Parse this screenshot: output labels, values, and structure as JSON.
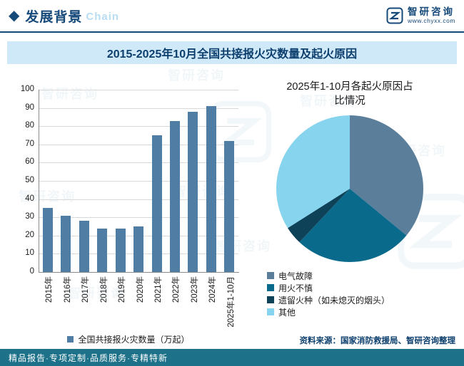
{
  "header": {
    "diamond": "◆",
    "title": "发展背景",
    "watermark_word": "Chain",
    "brand": "智研咨询",
    "website": "www.chyxx.com"
  },
  "main_title": "2015-2025年10月全国共接报火灾数量及起火原因",
  "chart_data": [
    {
      "type": "bar",
      "categories": [
        "2015年",
        "2016年",
        "2017年",
        "2018年",
        "2019年",
        "2020年",
        "2021年",
        "2022年",
        "2023年",
        "2024年",
        "2025年1-10月"
      ],
      "values": [
        35,
        31,
        28,
        24,
        24,
        25,
        75,
        83,
        88,
        91,
        72
      ],
      "legend": "全国共接报火灾数量（万起）",
      "ylim": [
        0,
        100
      ],
      "ytick_step": 10,
      "bar_color": "#4f7da3",
      "grid": true
    },
    {
      "type": "pie",
      "title": "2025年1-10月各起火原因占比情况",
      "slices": [
        {
          "label": "电气故障",
          "value": 36,
          "color": "#5b7f9b"
        },
        {
          "label": "用火不慎",
          "value": 26,
          "color": "#0a6a8c"
        },
        {
          "label": "遗留火种（如未熄灭的烟头）",
          "value": 4,
          "color": "#0d4259"
        },
        {
          "label": "其他",
          "value": 34,
          "color": "#87d4ef"
        }
      ],
      "legend_position": "bottom-left"
    }
  ],
  "source_note": "资料来源：国家消防救援局、智研咨询整理",
  "footer": "精品报告·专项定制·品质服务·专精特新",
  "watermark": {
    "text": "智研咨询"
  },
  "colors": {
    "accent_navy": "#15497a",
    "title_bar_bg": "#cfe9f8",
    "footer_bg": "#1d7189",
    "bar": "#4f7da3"
  }
}
